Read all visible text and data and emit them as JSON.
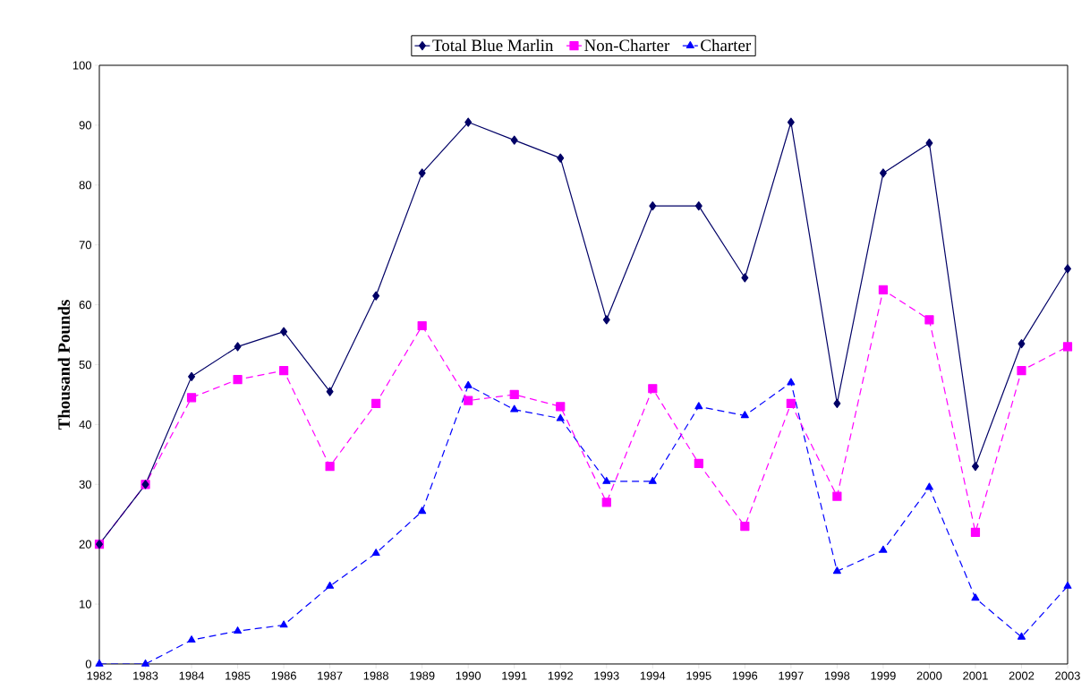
{
  "chart_data": {
    "type": "line",
    "ylabel": "Thousand Pounds",
    "categories": [
      "1982",
      "1983",
      "1984",
      "1985",
      "1986",
      "1987",
      "1988",
      "1989",
      "1990",
      "1991",
      "1992",
      "1993",
      "1994",
      "1995",
      "1996",
      "1997",
      "1998",
      "1999",
      "2000",
      "2001",
      "2002",
      "2003"
    ],
    "series": [
      {
        "name": "Total Blue Marlin",
        "color": "#000066",
        "marker": "diamond",
        "line_style": "solid",
        "values": [
          20,
          30,
          48,
          53,
          55.5,
          45.5,
          61.5,
          82,
          90.5,
          87.5,
          84.5,
          57.5,
          76.5,
          76.5,
          64.5,
          90.5,
          43.5,
          82,
          87,
          33,
          53.5,
          66
        ]
      },
      {
        "name": "Non-Charter",
        "color": "#ff00ff",
        "marker": "square",
        "line_style": "dashed",
        "values": [
          20,
          30,
          44.5,
          47.5,
          49,
          33,
          43.5,
          56.5,
          44,
          45,
          43,
          27,
          46,
          33.5,
          23,
          43.5,
          28,
          62.5,
          57.5,
          22,
          49,
          53
        ]
      },
      {
        "name": "Charter",
        "color": "#0000ff",
        "marker": "triangle",
        "line_style": "dashed",
        "values": [
          0,
          0,
          4,
          5.5,
          6.5,
          13,
          18.5,
          25.5,
          46.5,
          42.5,
          41,
          30.5,
          30.5,
          43,
          41.5,
          47,
          15.5,
          19,
          29.5,
          11,
          4.5,
          13
        ]
      }
    ],
    "ylim": [
      0,
      100
    ],
    "yticks": [
      0,
      10,
      20,
      30,
      40,
      50,
      60,
      70,
      80,
      90,
      100
    ],
    "grid": false,
    "legend": "top"
  }
}
